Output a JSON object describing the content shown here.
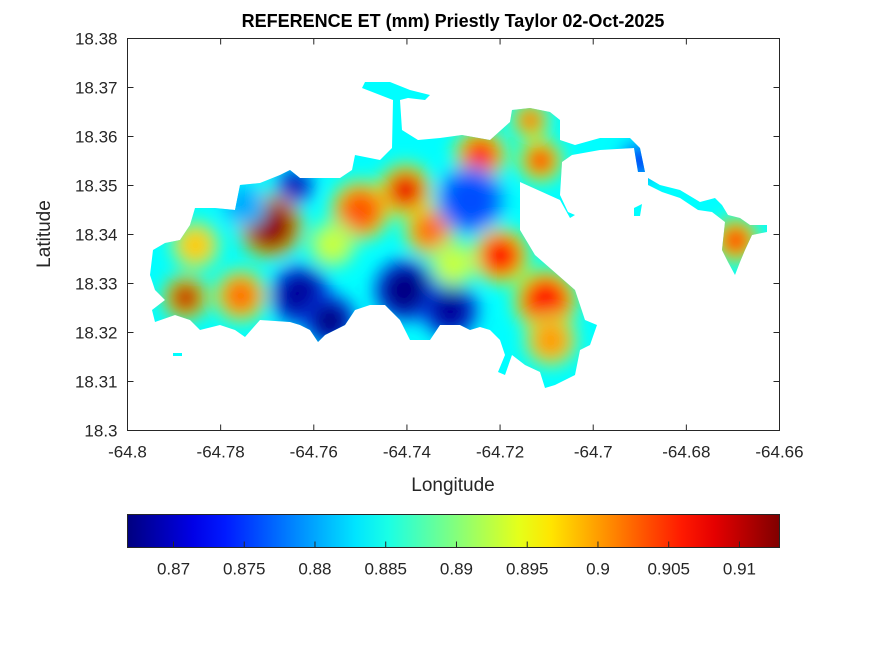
{
  "chart_data": {
    "type": "heatmap",
    "title": "REFERENCE ET (mm) Priestly Taylor 02-Oct-2025",
    "xlabel": "Longitude",
    "ylabel": "Latitude",
    "xlim": [
      -64.8,
      -64.66
    ],
    "ylim": [
      18.3,
      18.38
    ],
    "xticks": [
      -64.8,
      -64.78,
      -64.76,
      -64.74,
      -64.72,
      -64.7,
      -64.68,
      -64.66
    ],
    "xtick_labels": [
      "-64.8",
      "-64.78",
      "-64.76",
      "-64.74",
      "-64.72",
      "-64.7",
      "-64.68",
      "-64.66"
    ],
    "yticks": [
      18.3,
      18.31,
      18.32,
      18.33,
      18.34,
      18.35,
      18.36,
      18.37,
      18.38
    ],
    "ytick_labels": [
      "18.3",
      "18.31",
      "18.32",
      "18.33",
      "18.34",
      "18.35",
      "18.36",
      "18.37",
      "18.38"
    ],
    "colormap": "jet",
    "colorbar": {
      "location": "bottom",
      "clim": [
        0.86675,
        0.91283
      ],
      "ticks": [
        0.87,
        0.875,
        0.88,
        0.885,
        0.89,
        0.895,
        0.9,
        0.905,
        0.91
      ],
      "tick_labels": [
        "0.87",
        "0.875",
        "0.88",
        "0.885",
        "0.89",
        "0.895",
        "0.9",
        "0.905",
        "0.91"
      ]
    },
    "background_value": 0.884,
    "hotspots": [
      {
        "lon": -64.7693,
        "lat": 18.3418,
        "value": 0.912
      },
      {
        "lon": -64.7875,
        "lat": 18.3271,
        "value": 0.91
      },
      {
        "lon": -64.7757,
        "lat": 18.3275,
        "value": 0.902
      },
      {
        "lon": -64.7854,
        "lat": 18.3378,
        "value": 0.898
      },
      {
        "lon": -64.7403,
        "lat": 18.349,
        "value": 0.908
      },
      {
        "lon": -64.75,
        "lat": 18.3449,
        "value": 0.903
      },
      {
        "lon": -64.735,
        "lat": 18.3408,
        "value": 0.902
      },
      {
        "lon": -64.7242,
        "lat": 18.3561,
        "value": 0.905
      },
      {
        "lon": -64.7113,
        "lat": 18.3551,
        "value": 0.906
      },
      {
        "lon": -64.7135,
        "lat": 18.3633,
        "value": 0.904
      },
      {
        "lon": -64.7199,
        "lat": 18.3357,
        "value": 0.906
      },
      {
        "lon": -64.7102,
        "lat": 18.3265,
        "value": 0.906
      },
      {
        "lon": -64.7091,
        "lat": 18.3184,
        "value": 0.9
      },
      {
        "lon": -64.6694,
        "lat": 18.3388,
        "value": 0.906
      },
      {
        "lon": -64.7629,
        "lat": 18.3276,
        "value": 0.868
      },
      {
        "lon": -64.7565,
        "lat": 18.3224,
        "value": 0.867
      },
      {
        "lon": -64.7403,
        "lat": 18.3286,
        "value": 0.867
      },
      {
        "lon": -64.7307,
        "lat": 18.3245,
        "value": 0.868
      },
      {
        "lon": -64.7264,
        "lat": 18.347,
        "value": 0.876
      },
      {
        "lon": -64.764,
        "lat": 18.35,
        "value": 0.868
      },
      {
        "lon": -64.69,
        "lat": 18.355,
        "value": 0.872
      },
      {
        "lon": -64.756,
        "lat": 18.338,
        "value": 0.893
      },
      {
        "lon": -64.73,
        "lat": 18.334,
        "value": 0.893
      },
      {
        "lon": -64.775,
        "lat": 18.346,
        "value": 0.88
      }
    ]
  }
}
